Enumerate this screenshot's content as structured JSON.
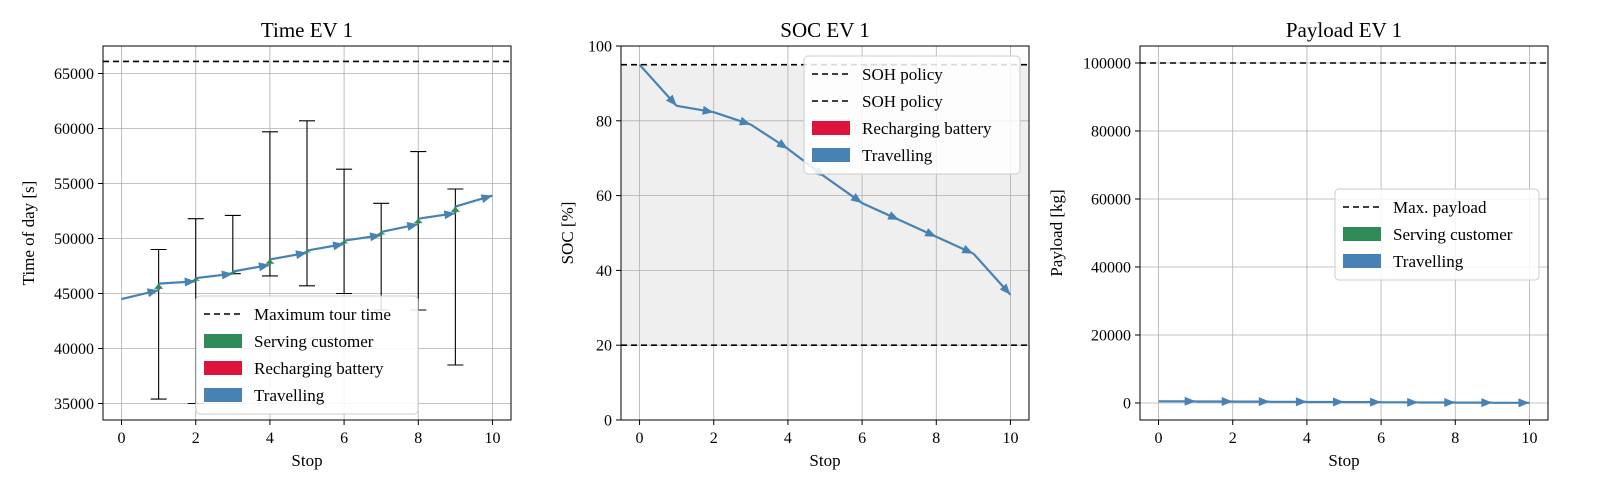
{
  "chart_data": [
    {
      "type": "line",
      "title": "Time EV 1",
      "xlabel": "Stop",
      "ylabel": "Time of day [s]",
      "xlim": [
        -0.5,
        10.5
      ],
      "ylim": [
        33500,
        67500
      ],
      "xticks": [
        0,
        2,
        4,
        6,
        8,
        10
      ],
      "yticks": [
        35000,
        40000,
        45000,
        50000,
        55000,
        60000,
        65000
      ],
      "grid": true,
      "hlines": [
        {
          "y": 66100,
          "style": "dashed",
          "label": "Maximum tour time"
        }
      ],
      "error_bars": [
        {
          "x": 1,
          "low": 35400,
          "high": 49000
        },
        {
          "x": 2,
          "low": 35000,
          "high": 51800
        },
        {
          "x": 3,
          "low": 46800,
          "high": 52100
        },
        {
          "x": 4,
          "low": 46600,
          "high": 59700
        },
        {
          "x": 5,
          "low": 45700,
          "high": 60700
        },
        {
          "x": 6,
          "low": 45000,
          "high": 56300
        },
        {
          "x": 7,
          "low": 43500,
          "high": 53200
        },
        {
          "x": 8,
          "low": 43500,
          "high": 57900
        },
        {
          "x": 9,
          "low": 38500,
          "high": 54500
        }
      ],
      "series": [
        {
          "name": "Travelling",
          "color": "#4682b4",
          "segments": [
            [
              0,
              44500,
              1,
              45300
            ],
            [
              1,
              45900,
              2,
              46100
            ],
            [
              2,
              46400,
              3,
              46800
            ],
            [
              3,
              47000,
              4,
              47600
            ],
            [
              4,
              48100,
              5,
              48700
            ],
            [
              5,
              48900,
              6,
              49500
            ],
            [
              6,
              49800,
              7,
              50300
            ],
            [
              7,
              50600,
              8,
              51300
            ],
            [
              8,
              51800,
              9,
              52300
            ],
            [
              9,
              52900,
              10,
              53900
            ]
          ]
        },
        {
          "name": "Serving customer",
          "color": "#2e8b57",
          "segments": [
            [
              1,
              45300,
              1,
              45900
            ],
            [
              2,
              46100,
              2,
              46400
            ],
            [
              3,
              46800,
              3,
              47000
            ],
            [
              4,
              47600,
              4,
              48100
            ],
            [
              5,
              48700,
              5,
              48900
            ],
            [
              6,
              49500,
              6,
              49800
            ],
            [
              7,
              50300,
              7,
              50600
            ],
            [
              8,
              51300,
              8,
              51800
            ],
            [
              9,
              52300,
              9,
              52900
            ]
          ]
        },
        {
          "name": "Recharging battery",
          "color": "#dc143c",
          "segments": []
        }
      ],
      "legend": {
        "position": "lower-center",
        "entries": [
          {
            "kind": "dash",
            "label": "Maximum tour time"
          },
          {
            "kind": "patch",
            "color": "#2e8b57",
            "label": "Serving customer"
          },
          {
            "kind": "patch",
            "color": "#dc143c",
            "label": "Recharging battery"
          },
          {
            "kind": "patch",
            "color": "#4682b4",
            "label": "Travelling"
          }
        ]
      }
    },
    {
      "type": "line",
      "title": "SOC EV 1",
      "xlabel": "Stop",
      "ylabel": "SOC [%]",
      "xlim": [
        -0.5,
        10.5
      ],
      "ylim": [
        0,
        100
      ],
      "xticks": [
        0,
        2,
        4,
        6,
        8,
        10
      ],
      "yticks": [
        0,
        20,
        40,
        60,
        80,
        100
      ],
      "grid": true,
      "shaded_band": {
        "y0": 20,
        "y1": 95,
        "color": "#efefef"
      },
      "hlines": [
        {
          "y": 95,
          "style": "dashed",
          "label": "SOH policy"
        },
        {
          "y": 20,
          "style": "dashed",
          "label": "SOH policy"
        }
      ],
      "series": [
        {
          "name": "Travelling",
          "color": "#4682b4",
          "segments": [
            [
              0,
              95,
              1,
              84
            ],
            [
              1,
              84,
              2,
              82.3
            ],
            [
              2,
              82.3,
              3,
              79
            ],
            [
              3,
              79,
              4,
              72.5
            ],
            [
              4,
              72.5,
              5,
              65
            ],
            [
              5,
              65,
              6,
              58
            ],
            [
              6,
              58,
              7,
              53.5
            ],
            [
              7,
              53.5,
              8,
              49
            ],
            [
              8,
              49,
              9,
              44.5
            ],
            [
              9,
              44.5,
              10,
              33.5
            ]
          ]
        },
        {
          "name": "Recharging battery",
          "color": "#dc143c",
          "segments": []
        }
      ],
      "legend": {
        "position": "top-right",
        "entries": [
          {
            "kind": "dash",
            "label": "SOH policy"
          },
          {
            "kind": "dash",
            "label": "SOH policy"
          },
          {
            "kind": "patch",
            "color": "#dc143c",
            "label": "Recharging battery"
          },
          {
            "kind": "patch",
            "color": "#4682b4",
            "label": "Travelling"
          }
        ]
      }
    },
    {
      "type": "line",
      "title": "Payload EV 1",
      "xlabel": "Stop",
      "ylabel": "Payload [kg]",
      "xlim": [
        -0.5,
        10.5
      ],
      "ylim": [
        -5000,
        105000
      ],
      "xticks": [
        0,
        2,
        4,
        6,
        8,
        10
      ],
      "yticks": [
        0,
        20000,
        40000,
        60000,
        80000,
        100000
      ],
      "grid": true,
      "hlines": [
        {
          "y": 100000,
          "style": "dashed",
          "label": "Max. payload"
        }
      ],
      "series": [
        {
          "name": "Travelling",
          "color": "#4682b4",
          "segments": [
            [
              0,
              500,
              1,
              500
            ],
            [
              1,
              450,
              2,
              450
            ],
            [
              2,
              400,
              3,
              400
            ],
            [
              3,
              350,
              4,
              350
            ],
            [
              4,
              300,
              5,
              300
            ],
            [
              5,
              250,
              6,
              250
            ],
            [
              6,
              200,
              7,
              200
            ],
            [
              7,
              150,
              8,
              150
            ],
            [
              8,
              100,
              9,
              100
            ],
            [
              9,
              50,
              10,
              50
            ]
          ]
        },
        {
          "name": "Serving customer",
          "color": "#2e8b57",
          "segments": []
        }
      ],
      "legend": {
        "position": "center-right",
        "entries": [
          {
            "kind": "dash",
            "label": "Max. payload"
          },
          {
            "kind": "patch",
            "color": "#2e8b57",
            "label": "Serving customer"
          },
          {
            "kind": "patch",
            "color": "#4682b4",
            "label": "Travelling"
          }
        ]
      }
    }
  ]
}
